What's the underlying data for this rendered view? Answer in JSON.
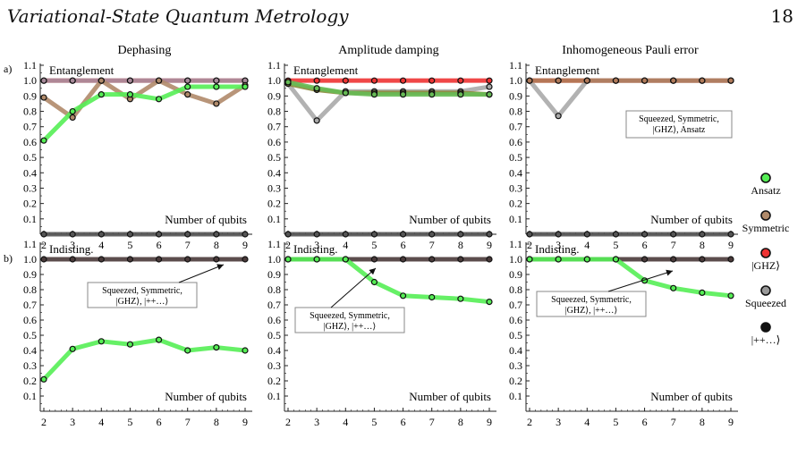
{
  "header": {
    "title": "Variational-State Quantum Metrology",
    "page_number": "18"
  },
  "columns": [
    "Dephasing",
    "Amplitude damping",
    "Inhomogeneous Pauli error"
  ],
  "rows": [
    {
      "label": "a)",
      "inset": "Entanglement"
    },
    {
      "label": "b)",
      "inset": "Indisting."
    }
  ],
  "axis": {
    "xlabel": "Number of qubits",
    "x_ticks": [
      "2",
      "3",
      "4",
      "5",
      "6",
      "7",
      "8",
      "9"
    ],
    "y_ticks": [
      "0.1",
      "0.2",
      "0.3",
      "0.4",
      "0.5",
      "0.6",
      "0.7",
      "0.8",
      "0.9",
      "1.0",
      "1.1"
    ]
  },
  "legend": [
    {
      "name": "Ansatz",
      "color": "#55ee55"
    },
    {
      "name": "Symmetric",
      "color": "#b08a6a"
    },
    {
      "name": "|GHZ⟩",
      "color": "#ee3333"
    },
    {
      "name": "Squeezed",
      "color": "#999999"
    },
    {
      "name": "|++…⟩",
      "color": "#111111"
    }
  ],
  "chart_data": [
    {
      "type": "line",
      "row": "a",
      "column": "Dephasing",
      "inset": "Entanglement",
      "xlabel": "Number of qubits",
      "ylim": [
        0,
        1.1
      ],
      "x": [
        2,
        3,
        4,
        5,
        6,
        7,
        8,
        9
      ],
      "series": [
        {
          "name": "|GHZ⟩",
          "color": "#e06060",
          "values": [
            1,
            1,
            1,
            1,
            1,
            1,
            1,
            1
          ]
        },
        {
          "name": "Squeezed",
          "color": "#a88a9a",
          "values": [
            1,
            1,
            1,
            1,
            1,
            1,
            1,
            1
          ]
        },
        {
          "name": "Symmetric",
          "color": "#b08a6a",
          "values": [
            0.89,
            0.76,
            1.0,
            0.88,
            1.0,
            0.91,
            0.85,
            0.97
          ]
        },
        {
          "name": "Ansatz",
          "color": "#55ee55",
          "values": [
            0.61,
            0.8,
            0.91,
            0.91,
            0.88,
            0.96,
            0.96,
            0.96
          ]
        },
        {
          "name": "|++…⟩",
          "color": "#555555",
          "values": [
            0,
            0,
            0,
            0,
            0,
            0,
            0,
            0
          ]
        }
      ]
    },
    {
      "type": "line",
      "row": "a",
      "column": "Amplitude damping",
      "inset": "Entanglement",
      "xlabel": "Number of qubits",
      "ylim": [
        0,
        1.1
      ],
      "x": [
        2,
        3,
        4,
        5,
        6,
        7,
        8,
        9
      ],
      "series": [
        {
          "name": "|GHZ⟩",
          "color": "#ee3333",
          "values": [
            1,
            1,
            1,
            1,
            1,
            1,
            1,
            1
          ]
        },
        {
          "name": "Squeezed",
          "color": "#aaaaaa",
          "values": [
            0.98,
            0.74,
            0.93,
            0.93,
            0.93,
            0.93,
            0.93,
            0.96
          ]
        },
        {
          "name": "Symmetric",
          "color": "#8a8a3a",
          "values": [
            0.98,
            0.94,
            0.92,
            0.92,
            0.92,
            0.92,
            0.92,
            0.91
          ]
        },
        {
          "name": "Ansatz",
          "color": "#66bb55",
          "values": [
            0.99,
            0.95,
            0.92,
            0.91,
            0.91,
            0.91,
            0.91,
            0.91
          ]
        },
        {
          "name": "|++…⟩",
          "color": "#555555",
          "values": [
            0,
            0,
            0,
            0,
            0,
            0,
            0,
            0
          ]
        }
      ]
    },
    {
      "type": "line",
      "row": "a",
      "column": "Inhomogeneous Pauli error",
      "inset": "Entanglement",
      "xlabel": "Number of qubits",
      "ylim": [
        0,
        1.1
      ],
      "x": [
        2,
        3,
        4,
        5,
        6,
        7,
        8,
        9
      ],
      "annotation": "Squeezed, Symmetric, |GHZ⟩, Ansatz",
      "series": [
        {
          "name": "|GHZ⟩",
          "color": "#dd4422",
          "values": [
            1,
            1,
            1,
            1,
            1,
            1,
            1,
            1
          ]
        },
        {
          "name": "Squeezed",
          "color": "#aaaaaa",
          "values": [
            1,
            0.77,
            1,
            1,
            1,
            1,
            1,
            1
          ]
        },
        {
          "name": "Symmetric",
          "color": "#b07a5a",
          "values": [
            1,
            1,
            1,
            1,
            1,
            1,
            1,
            1
          ]
        },
        {
          "name": "|++…⟩",
          "color": "#555555",
          "values": [
            0,
            0,
            0,
            0,
            0,
            0,
            0,
            0
          ]
        }
      ]
    },
    {
      "type": "line",
      "row": "b",
      "column": "Dephasing",
      "inset": "Indisting.",
      "xlabel": "Number of qubits",
      "ylim": [
        0,
        1.1
      ],
      "x": [
        2,
        3,
        4,
        5,
        6,
        7,
        8,
        9
      ],
      "annotation": "Squeezed, Symmetric, |GHZ⟩, |++…⟩",
      "series": [
        {
          "name": "Squeezed",
          "color": "#4a3a3a",
          "values": [
            1,
            1,
            1,
            1,
            1,
            1,
            1,
            1
          ]
        },
        {
          "name": "Ansatz",
          "color": "#55ee55",
          "values": [
            0.21,
            0.41,
            0.46,
            0.44,
            0.47,
            0.4,
            0.42,
            0.4
          ]
        }
      ]
    },
    {
      "type": "line",
      "row": "b",
      "column": "Amplitude damping",
      "inset": "Indisting.",
      "xlabel": "Number of qubits",
      "ylim": [
        0,
        1.1
      ],
      "x": [
        2,
        3,
        4,
        5,
        6,
        7,
        8,
        9
      ],
      "annotation": "Squeezed, Symmetric, |GHZ⟩, |++…⟩",
      "series": [
        {
          "name": "Squeezed",
          "color": "#4a3a3a",
          "values": [
            1,
            1,
            1,
            1,
            1,
            1,
            1,
            1
          ]
        },
        {
          "name": "Ansatz",
          "color": "#55ee55",
          "values": [
            1,
            1,
            1,
            0.85,
            0.76,
            0.75,
            0.74,
            0.72
          ]
        }
      ]
    },
    {
      "type": "line",
      "row": "b",
      "column": "Inhomogeneous Pauli error",
      "inset": "Indisting.",
      "xlabel": "Number of qubits",
      "ylim": [
        0,
        1.1
      ],
      "x": [
        2,
        3,
        4,
        5,
        6,
        7,
        8,
        9
      ],
      "annotation": "Squeezed, Symmetric, |GHZ⟩, |++…⟩",
      "series": [
        {
          "name": "Squeezed",
          "color": "#4a3a3a",
          "values": [
            1,
            1,
            1,
            1,
            1,
            1,
            1,
            1
          ]
        },
        {
          "name": "Ansatz",
          "color": "#55ee55",
          "values": [
            1,
            1,
            1,
            1,
            0.86,
            0.81,
            0.78,
            0.76
          ]
        }
      ]
    }
  ]
}
